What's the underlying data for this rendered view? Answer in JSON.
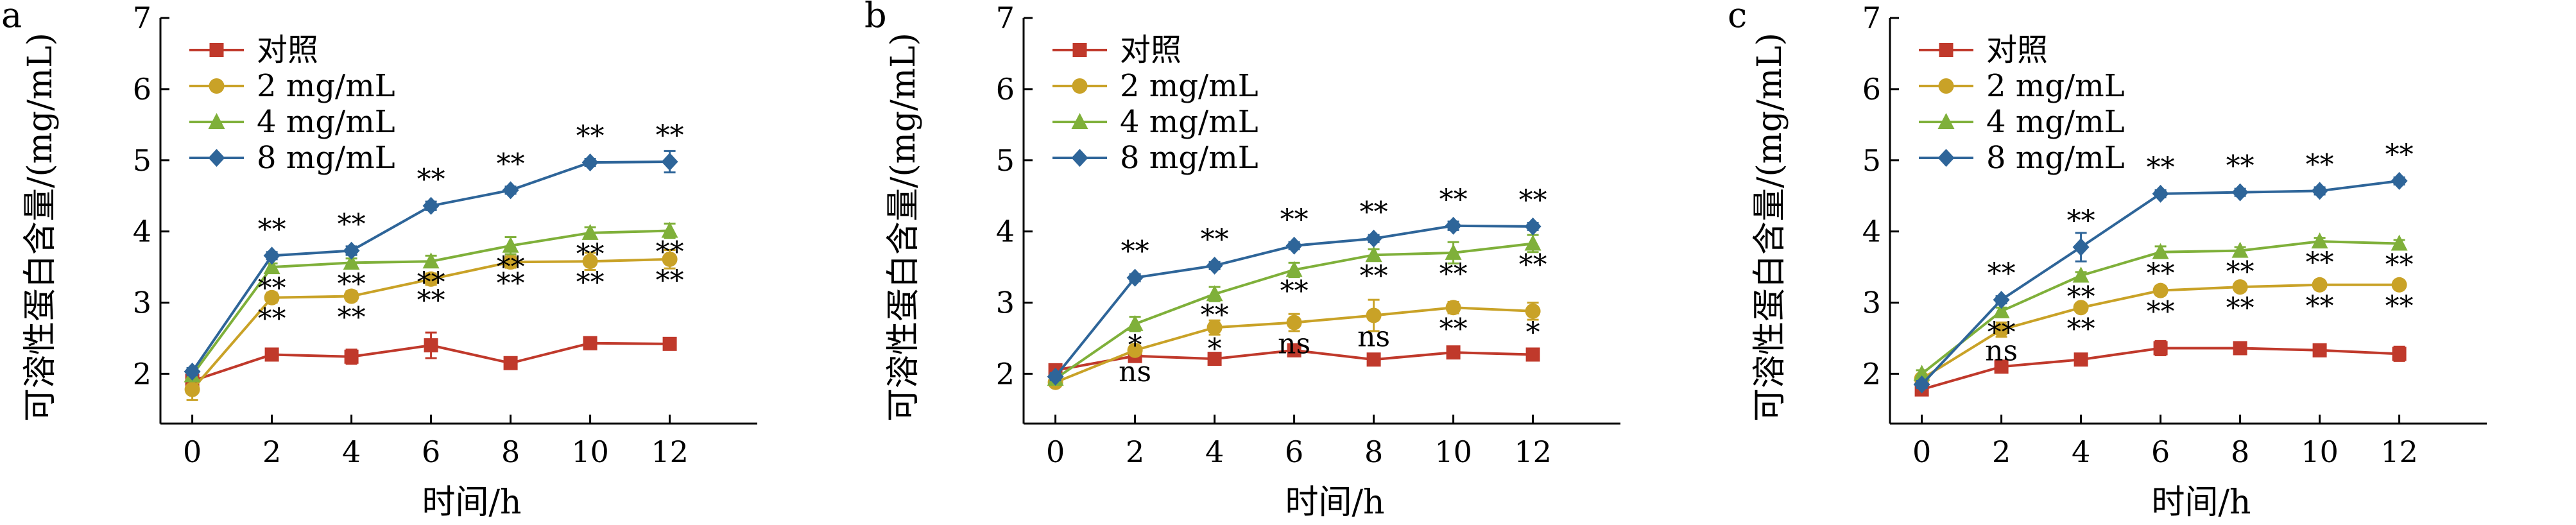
{
  "chart_data": [
    {
      "type": "line",
      "panel_label": "a",
      "xlabel": "时间/h",
      "ylabel": "可溶性蛋白含量/(mg/mL)",
      "x": [
        0,
        2,
        4,
        6,
        8,
        10,
        12
      ],
      "xticks": [
        "0",
        "2",
        "4",
        "6",
        "8",
        "10",
        "12"
      ],
      "yticks": [
        "2",
        "3",
        "4",
        "5",
        "6",
        "7"
      ],
      "xlim": [
        -0.8,
        14.2
      ],
      "ylim": [
        1.3,
        7
      ],
      "legend_position": "top-left",
      "series": [
        {
          "name": "对照",
          "color": "#c0392b",
          "marker": "square",
          "values": [
            1.9,
            2.27,
            2.24,
            2.4,
            2.15,
            2.43,
            2.42
          ],
          "errors": [
            0.05,
            0.05,
            0.1,
            0.18,
            0.05,
            0.06,
            0.06
          ],
          "sig": [
            "",
            "",
            "",
            "",
            "",
            "",
            ""
          ]
        },
        {
          "name": "2 mg/mL",
          "color": "#c9a227",
          "marker": "circle",
          "values": [
            1.78,
            3.07,
            3.09,
            3.33,
            3.57,
            3.58,
            3.61
          ],
          "errors": [
            0.15,
            0.07,
            0.07,
            0.08,
            0.08,
            0.12,
            0.13
          ],
          "sig": [
            "",
            "**",
            "**",
            "**",
            "**",
            "**",
            "**"
          ]
        },
        {
          "name": "4 mg/mL",
          "color": "#7fb03a",
          "marker": "triangle",
          "values": [
            1.98,
            3.5,
            3.56,
            3.58,
            3.8,
            3.98,
            4.01
          ],
          "errors": [
            0.05,
            0.05,
            0.06,
            0.08,
            0.12,
            0.08,
            0.1
          ],
          "sig": [
            "",
            "**",
            "**",
            "**",
            "**",
            "**",
            "**"
          ]
        },
        {
          "name": "8 mg/mL",
          "color": "#2e6599",
          "marker": "diamond",
          "values": [
            2.03,
            3.66,
            3.73,
            4.36,
            4.58,
            4.97,
            4.98
          ],
          "errors": [
            0.05,
            0.05,
            0.06,
            0.06,
            0.05,
            0.05,
            0.15
          ],
          "sig": [
            "",
            "**",
            "**",
            "**",
            "**",
            "**",
            "**"
          ]
        }
      ]
    },
    {
      "type": "line",
      "panel_label": "b",
      "xlabel": "时间/h",
      "ylabel": "可溶性蛋白含量/(mg/mL)",
      "x": [
        0,
        2,
        4,
        6,
        8,
        10,
        12
      ],
      "xticks": [
        "0",
        "2",
        "4",
        "6",
        "8",
        "10",
        "12"
      ],
      "yticks": [
        "2",
        "3",
        "4",
        "5",
        "6",
        "7"
      ],
      "xlim": [
        -0.8,
        14.2
      ],
      "ylim": [
        1.3,
        7
      ],
      "legend_position": "top-left",
      "series": [
        {
          "name": "对照",
          "color": "#c0392b",
          "marker": "square",
          "values": [
            2.05,
            2.25,
            2.21,
            2.33,
            2.2,
            2.3,
            2.27
          ],
          "errors": [
            0.05,
            0.05,
            0.05,
            0.05,
            0.08,
            0.05,
            0.06
          ],
          "sig": [
            "",
            "",
            "",
            "",
            "",
            "",
            ""
          ]
        },
        {
          "name": "2 mg/mL",
          "color": "#c9a227",
          "marker": "circle",
          "values": [
            1.88,
            2.33,
            2.65,
            2.72,
            2.82,
            2.93,
            2.88
          ],
          "errors": [
            0.05,
            0.06,
            0.1,
            0.12,
            0.22,
            0.08,
            0.12
          ],
          "sig": [
            "",
            "ns",
            "*",
            "ns",
            "ns",
            "**",
            "*"
          ]
        },
        {
          "name": "4 mg/mL",
          "color": "#7fb03a",
          "marker": "triangle",
          "values": [
            1.93,
            2.7,
            3.12,
            3.46,
            3.67,
            3.7,
            3.83
          ],
          "errors": [
            0.05,
            0.1,
            0.1,
            0.1,
            0.08,
            0.15,
            0.12
          ],
          "sig": [
            "",
            "*",
            "**",
            "**",
            "**",
            "**",
            "**"
          ]
        },
        {
          "name": "8 mg/mL",
          "color": "#2e6599",
          "marker": "diamond",
          "values": [
            1.96,
            3.35,
            3.52,
            3.8,
            3.9,
            4.08,
            4.07
          ],
          "errors": [
            0.05,
            0.05,
            0.05,
            0.05,
            0.05,
            0.06,
            0.05
          ],
          "sig": [
            "",
            "**",
            "**",
            "**",
            "**",
            "**",
            "**"
          ]
        }
      ]
    },
    {
      "type": "line",
      "panel_label": "c",
      "xlabel": "时间/h",
      "ylabel": "可溶性蛋白含量/(mg/mL)",
      "x": [
        0,
        2,
        4,
        6,
        8,
        10,
        12
      ],
      "xticks": [
        "0",
        "2",
        "4",
        "6",
        "8",
        "10",
        "12"
      ],
      "yticks": [
        "2",
        "3",
        "4",
        "5",
        "6",
        "7"
      ],
      "xlim": [
        -0.8,
        14.2
      ],
      "ylim": [
        1.3,
        7
      ],
      "legend_position": "top-left",
      "series": [
        {
          "name": "对照",
          "color": "#c0392b",
          "marker": "square",
          "values": [
            1.78,
            2.1,
            2.2,
            2.36,
            2.36,
            2.33,
            2.28
          ],
          "errors": [
            0.05,
            0.05,
            0.05,
            0.1,
            0.05,
            0.05,
            0.1
          ],
          "sig": [
            "",
            "",
            "",
            "",
            "",
            "",
            ""
          ]
        },
        {
          "name": "2 mg/mL",
          "color": "#c9a227",
          "marker": "circle",
          "values": [
            1.93,
            2.62,
            2.93,
            3.17,
            3.22,
            3.25,
            3.25
          ],
          "errors": [
            0.05,
            0.1,
            0.05,
            0.05,
            0.05,
            0.05,
            0.05
          ],
          "sig": [
            "",
            "ns",
            "**",
            "**",
            "**",
            "**",
            "**"
          ]
        },
        {
          "name": "4 mg/mL",
          "color": "#7fb03a",
          "marker": "triangle",
          "values": [
            2.0,
            2.88,
            3.38,
            3.71,
            3.73,
            3.86,
            3.83
          ],
          "errors": [
            0.05,
            0.05,
            0.05,
            0.08,
            0.05,
            0.05,
            0.05
          ],
          "sig": [
            "",
            "**",
            "**",
            "**",
            "**",
            "**",
            "**"
          ]
        },
        {
          "name": "8 mg/mL",
          "color": "#2e6599",
          "marker": "diamond",
          "values": [
            1.85,
            3.04,
            3.78,
            4.53,
            4.55,
            4.57,
            4.71
          ],
          "errors": [
            0.05,
            0.05,
            0.2,
            0.05,
            0.05,
            0.05,
            0.05
          ],
          "sig": [
            "",
            "**",
            "**",
            "**",
            "**",
            "**",
            "**"
          ]
        }
      ]
    }
  ]
}
